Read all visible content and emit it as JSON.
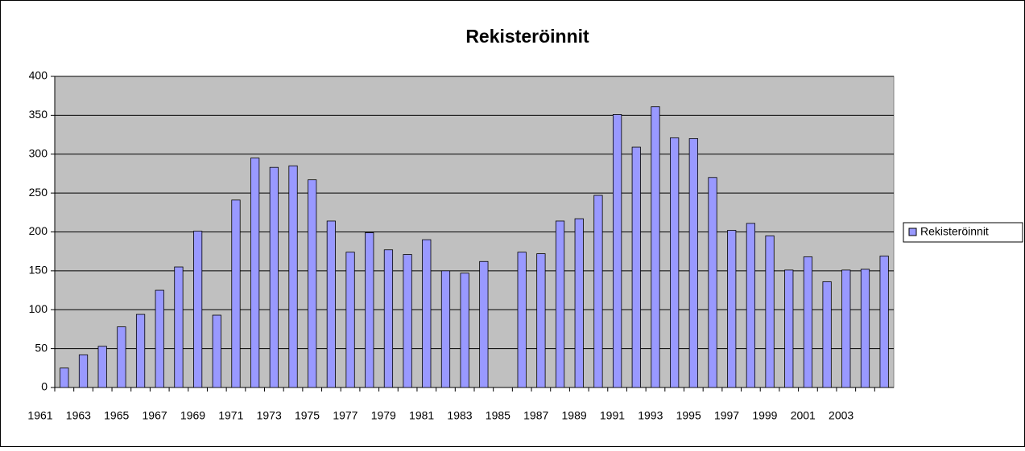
{
  "chart_data": {
    "type": "bar",
    "title": "Rekisteröinnit",
    "categories": [
      "1961",
      null,
      "1963",
      null,
      "1965",
      null,
      "1967",
      null,
      "1969",
      null,
      "1971",
      null,
      "1973",
      null,
      "1975",
      null,
      "1977",
      null,
      "1979",
      null,
      "1981",
      null,
      "1983",
      null,
      "1985",
      null,
      "1987",
      null,
      "1989",
      null,
      "1991",
      null,
      "1993",
      null,
      "1995",
      null,
      "1997",
      null,
      "1999",
      null,
      "2001",
      null,
      "2003",
      null
    ],
    "series": [
      {
        "name": "Rekisteröinnit",
        "color": "#9999ff",
        "values": [
          25,
          42,
          53,
          78,
          94,
          125,
          155,
          201,
          93,
          241,
          295,
          283,
          285,
          267,
          214,
          174,
          199,
          177,
          171,
          190,
          150,
          147,
          162,
          null,
          174,
          172,
          214,
          217,
          247,
          351,
          309,
          361,
          321,
          320,
          270,
          202,
          211,
          195,
          151,
          168,
          136,
          151,
          152,
          169
        ]
      }
    ],
    "ylim": [
      0,
      400
    ],
    "yticks": [
      0,
      50,
      100,
      150,
      200,
      250,
      300,
      350,
      400
    ],
    "grid": true,
    "legend": "right"
  }
}
